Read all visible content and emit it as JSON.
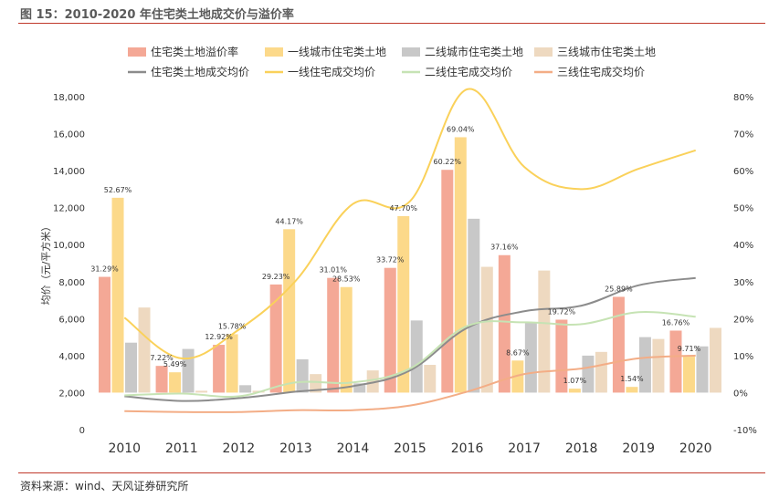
{
  "figure": {
    "title": "图 15：2010-2020 年住宅类土地成交价与溢价率",
    "source": "资料来源：wind、天风证券研究所"
  },
  "chart_data": {
    "type": "bar",
    "categories": [
      "2010",
      "2011",
      "2012",
      "2013",
      "2014",
      "2015",
      "2016",
      "2017",
      "2018",
      "2019",
      "2020"
    ],
    "ylabel": "均价（元/平方米）",
    "ylim": [
      0,
      18000
    ],
    "yticks": [
      0,
      2000,
      4000,
      6000,
      8000,
      10000,
      12000,
      14000,
      16000,
      18000
    ],
    "ytick_labels": [
      "0",
      "2,000",
      "4,000",
      "6,000",
      "8,000",
      "10,000",
      "12,000",
      "14,000",
      "16,000",
      "18,000"
    ],
    "y2lim": [
      -10,
      80
    ],
    "y2ticks": [
      -10,
      0,
      10,
      20,
      30,
      40,
      50,
      60,
      70,
      80
    ],
    "y2tick_labels": [
      "-10%",
      "0%",
      "10%",
      "20%",
      "30%",
      "40%",
      "50%",
      "60%",
      "70%",
      "80%"
    ],
    "bar_series": [
      {
        "name": "住宅类土地溢价率",
        "color": "#f4a896",
        "axis": "right",
        "values": [
          31.29,
          7.22,
          12.92,
          29.23,
          31.01,
          33.72,
          60.22,
          37.16,
          19.72,
          25.89,
          16.76
        ],
        "labels": [
          "31.29%",
          "7.22%",
          "12.92%",
          "29.23%",
          "31.01%",
          "33.72%",
          "60.22%",
          "37.16%",
          "19.72%",
          "25.89%",
          "16.76%"
        ]
      },
      {
        "name": "一线城市住宅类土地",
        "color": "#fcd98a",
        "axis": "right",
        "values": [
          52.67,
          5.49,
          15.78,
          44.17,
          28.53,
          47.7,
          69.04,
          8.67,
          1.07,
          1.54,
          9.71
        ],
        "labels": [
          "52.67%",
          "5.49%",
          "15.78%",
          "44.17%",
          "28.53%",
          "47.70%",
          "69.04%",
          "8.67%",
          "1.07%",
          "1.54%",
          "9.71%"
        ]
      },
      {
        "name": "二线城市住宅类土地",
        "color": "#c8c8c8",
        "axis": "right",
        "values": [
          13.5,
          11.8,
          2.0,
          9.0,
          2.5,
          19.5,
          47.0,
          19.0,
          10.0,
          15.0,
          12.5
        ]
      },
      {
        "name": "三线城市住宅类土地",
        "color": "#eed9c0",
        "axis": "right",
        "values": [
          23.0,
          0.5,
          0.5,
          5.0,
          6.0,
          7.5,
          34.0,
          33.0,
          11.0,
          14.5,
          17.5
        ]
      }
    ],
    "line_series": [
      {
        "name": "住宅类土地成交均价",
        "color": "#8c8c8c",
        "axis": "left",
        "values": [
          1800,
          1550,
          1700,
          2050,
          2350,
          3200,
          5500,
          6400,
          6700,
          7800,
          8200
        ]
      },
      {
        "name": "一线住宅成交均价",
        "color": "#fad15a",
        "axis": "left",
        "values": [
          6050,
          3850,
          5400,
          8050,
          12200,
          12350,
          18400,
          14200,
          13000,
          14100,
          15100
        ]
      },
      {
        "name": "二线住宅成交均价",
        "color": "#c6e3b4",
        "axis": "left",
        "values": [
          1850,
          1950,
          1800,
          2550,
          2550,
          3300,
          5600,
          5800,
          5700,
          6350,
          6100
        ]
      },
      {
        "name": "三线住宅成交均价",
        "color": "#f3ad86",
        "axis": "left",
        "values": [
          1000,
          950,
          950,
          1050,
          1050,
          1300,
          2050,
          3000,
          3300,
          3850,
          4000
        ]
      }
    ],
    "legend": {
      "position": "top",
      "columns": 4
    }
  }
}
